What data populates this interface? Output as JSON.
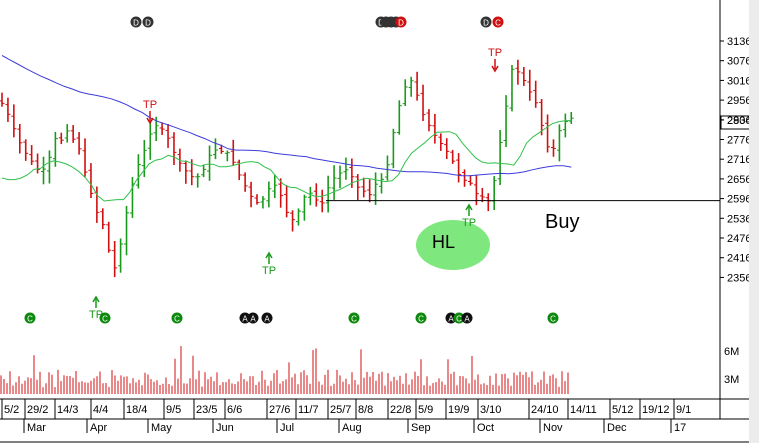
{
  "chart_data": {
    "type": "bar",
    "subtype": "ohlc-price-with-volume",
    "colors": {
      "up": "#1a9a1a",
      "down": "#d01010",
      "ma_fast": "#2fc04a",
      "ma_slow": "#3c3cdc",
      "hl_bubble": "#7ee87e",
      "marker_dark": "#333333",
      "marker_green": "#0d8a0d"
    },
    "y_axis": {
      "ticks": [
        "3136",
        "3076",
        "3016",
        "2956",
        "2904",
        "2836",
        "2776",
        "2716",
        "2656",
        "2596",
        "2536",
        "2476",
        "2416",
        "2356"
      ],
      "current_price": "2904",
      "ylim": [
        2326,
        3166
      ]
    },
    "volume_axis": {
      "ticks": [
        "6M",
        "3M"
      ]
    },
    "date_ticks": [
      "5/2",
      "29/2",
      "14/3",
      "4/4",
      "18/4",
      "9/5",
      "23/5",
      "6/6",
      "27/6",
      "11/7",
      "25/7",
      "8/8",
      "22/8",
      "5/9",
      "19/9",
      "3/10",
      "24/10",
      "14/11",
      "5/12",
      "19/12",
      "9/1"
    ],
    "month_labels": [
      "Mar",
      "Apr",
      "May",
      "Jun",
      "Jul",
      "Aug",
      "Sep",
      "Oct",
      "Nov",
      "Dec",
      "17"
    ],
    "annotations": {
      "tp": "TP",
      "hl": "HL",
      "buy": "Buy"
    },
    "top_markers": [
      {
        "items": [
          "D",
          "D"
        ]
      },
      {
        "items": [
          "D",
          "",
          "",
          "",
          "D"
        ]
      },
      {
        "items": [
          "D",
          "C"
        ]
      }
    ],
    "bottom_markers": [
      {
        "items": [
          "C"
        ],
        "style": "green"
      },
      {
        "items": [
          "C"
        ],
        "style": "green"
      },
      {
        "items": [
          "C"
        ],
        "style": "green"
      },
      {
        "items": [
          "A",
          "A"
        ],
        "style": "dark"
      },
      {
        "items": [
          "A"
        ],
        "style": "dark"
      },
      {
        "items": [
          "C"
        ],
        "style": "green"
      },
      {
        "items": [
          "C"
        ],
        "style": "green"
      },
      {
        "items": [
          "A",
          "C",
          "A"
        ],
        "style": "mixed"
      },
      {
        "items": [
          "C"
        ],
        "style": "green"
      }
    ],
    "support_level": 2662,
    "price_series": [
      2958,
      2925,
      2881,
      2838,
      2806,
      2782,
      2757,
      2758,
      2794,
      2851,
      2846,
      2874,
      2849,
      2820,
      2749,
      2684,
      2626,
      2589,
      2511,
      2457,
      2530,
      2625,
      2713,
      2772,
      2815,
      2865,
      2890,
      2880,
      2852,
      2809,
      2776,
      2753,
      2735,
      2735,
      2757,
      2800,
      2816,
      2812,
      2808,
      2779,
      2740,
      2707,
      2675,
      2656,
      2667,
      2698,
      2709,
      2678,
      2626,
      2604,
      2630,
      2673,
      2685,
      2664,
      2655,
      2701,
      2731,
      2746,
      2756,
      2735,
      2703,
      2691,
      2680,
      2712,
      2727,
      2771,
      2869,
      2951,
      3008,
      3027,
      2983,
      2924,
      2891,
      2861,
      2836,
      2812,
      2782,
      2742,
      2724,
      2715,
      2683,
      2673,
      2661,
      2723,
      2839,
      2950,
      3062,
      3054,
      3028,
      2993,
      2960,
      2891,
      2826,
      2821,
      2875,
      2903,
      2913
    ],
    "ma_fast": [
      2731,
      2726,
      2726,
      2731,
      2741,
      2757,
      2760,
      2775,
      2783,
      2780,
      2774,
      2764,
      2751,
      2732,
      2709,
      2676,
      2661,
      2663,
      2665,
      2665,
      2688,
      2724,
      2749,
      2774,
      2785,
      2789,
      2800,
      2794,
      2783,
      2781,
      2773,
      2767,
      2773,
      2773,
      2765,
      2765,
      2768,
      2774,
      2779,
      2781,
      2778,
      2765,
      2756,
      2732,
      2712,
      2703,
      2701,
      2692,
      2682,
      2675,
      2675,
      2681,
      2690,
      2697,
      2708,
      2718,
      2725,
      2730,
      2727,
      2723,
      2720,
      2723,
      2741,
      2778,
      2806,
      2822,
      2837,
      2855,
      2870,
      2871,
      2872,
      2864,
      2837,
      2815,
      2793,
      2780,
      2776,
      2777,
      2775,
      2774,
      2770,
      2797,
      2837,
      2856,
      2869,
      2883,
      2896,
      2902,
      2905,
      2906
    ],
    "ma_slow": [
      3104,
      3091,
      3078,
      3065,
      3053,
      3041,
      3031,
      3020,
      3010,
      3002,
      2993,
      2987,
      2983,
      2978,
      2972,
      2964,
      2954,
      2941,
      2930,
      2914,
      2903,
      2895,
      2887,
      2878,
      2870,
      2860,
      2851,
      2840,
      2831,
      2820,
      2816,
      2816,
      2815,
      2814,
      2811,
      2806,
      2803,
      2801,
      2798,
      2796,
      2790,
      2786,
      2782,
      2778,
      2774,
      2770,
      2768,
      2766,
      2761,
      2758,
      2755,
      2752,
      2750,
      2750,
      2750,
      2749,
      2747,
      2745,
      2741,
      2738,
      2738,
      2740,
      2742,
      2744,
      2745,
      2744,
      2746,
      2750,
      2756,
      2761,
      2765,
      2768,
      2768,
      2764
    ]
  }
}
